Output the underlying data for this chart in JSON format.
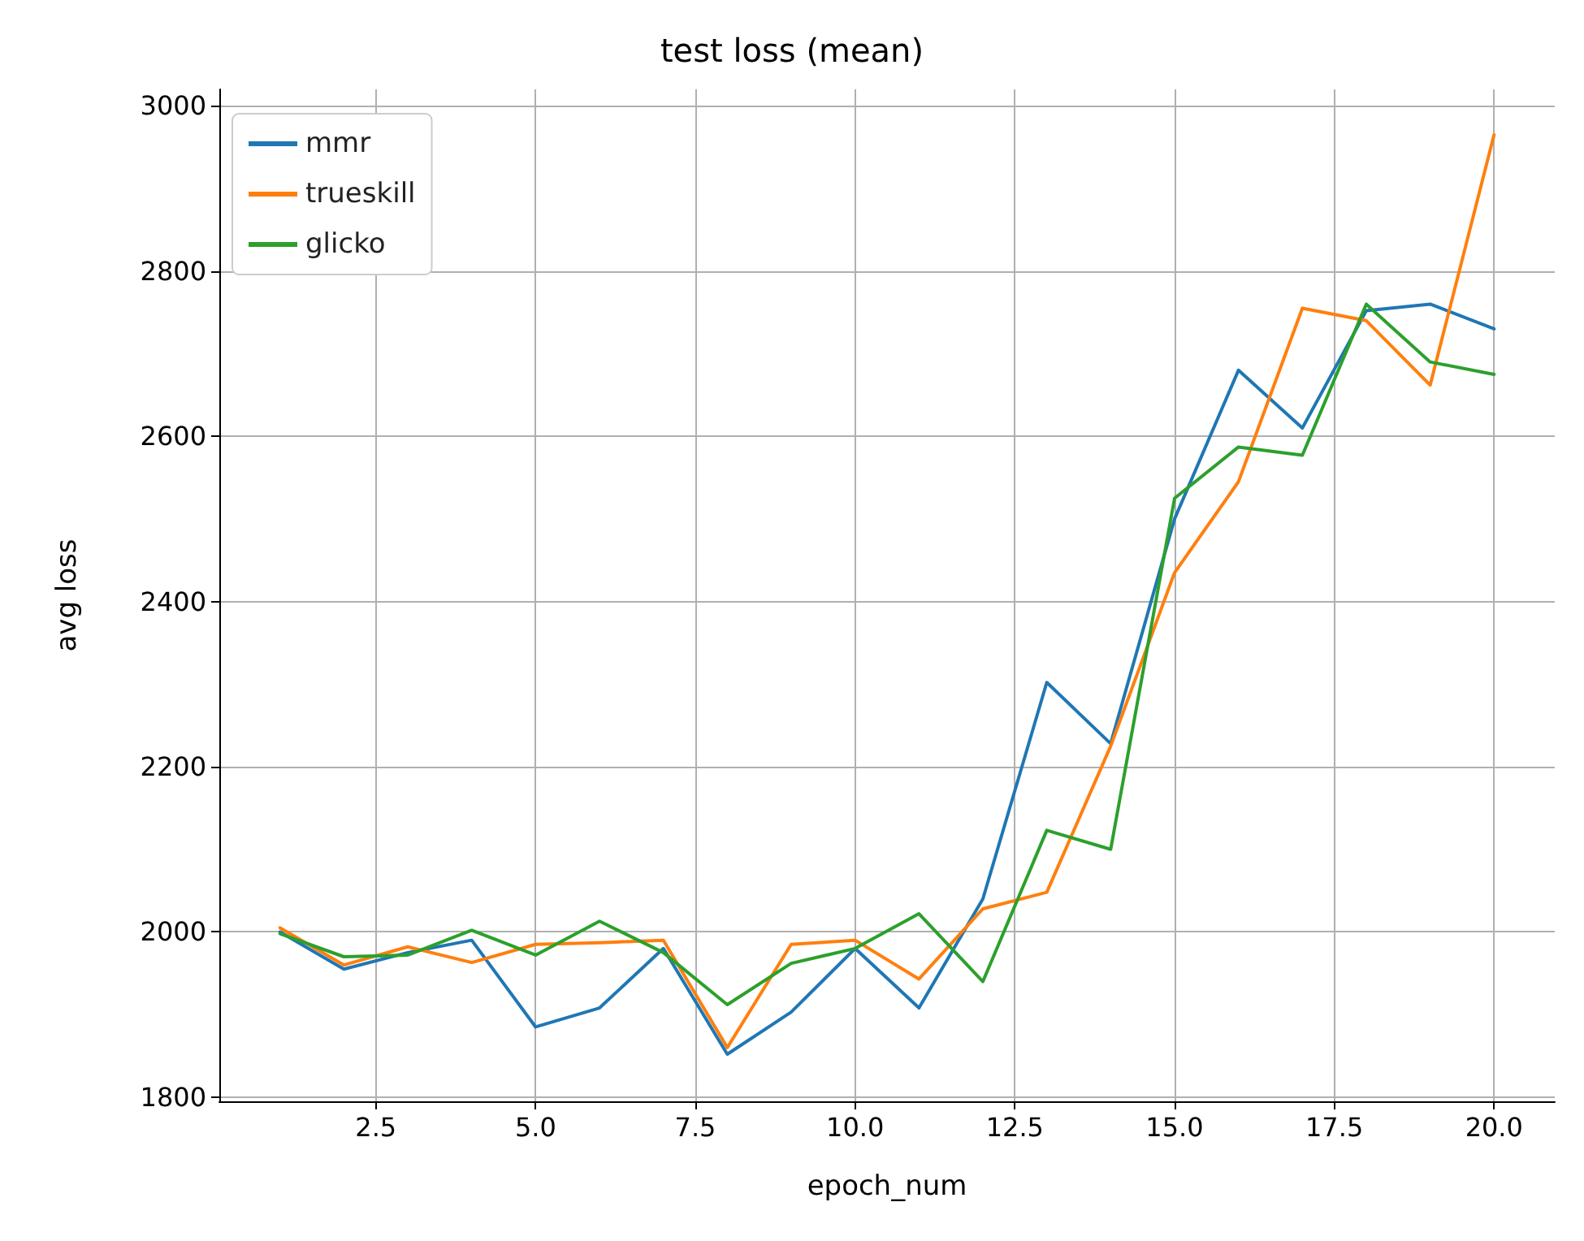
{
  "chart_data": {
    "type": "line",
    "title": "test loss (mean)",
    "xlabel": "epoch_num",
    "ylabel": "avg loss",
    "x": [
      1,
      2,
      3,
      4,
      5,
      6,
      7,
      8,
      9,
      10,
      11,
      12,
      13,
      14,
      15,
      16,
      17,
      18,
      19,
      20
    ],
    "series": [
      {
        "name": "mmr",
        "color": "#1f77b4",
        "values": [
          2000,
          1955,
          1975,
          1990,
          1885,
          1908,
          1980,
          1852,
          1903,
          1980,
          1908,
          2040,
          2302,
          2228,
          2500,
          2680,
          2610,
          2752,
          2760,
          2730
        ]
      },
      {
        "name": "trueskill",
        "color": "#ff7f0e",
        "values": [
          2005,
          1960,
          1982,
          1963,
          1985,
          1987,
          1990,
          1860,
          1985,
          1990,
          1943,
          2028,
          2048,
          2225,
          2435,
          2545,
          2755,
          2740,
          2662,
          2965
        ]
      },
      {
        "name": "glicko",
        "color": "#2ca02c",
        "values": [
          1998,
          1970,
          1972,
          2002,
          1972,
          2013,
          1975,
          1912,
          1962,
          1980,
          2022,
          1940,
          2123,
          2100,
          2525,
          2587,
          2577,
          2760,
          2690,
          2675
        ]
      }
    ],
    "xlim": [
      0.05,
      20.95
    ],
    "xticks": [
      2.5,
      {
        "value": 5,
        "label": "5.0"
      },
      7.5,
      {
        "value": 10,
        "label": "10.0"
      },
      12.5,
      {
        "value": 15,
        "label": "15.0"
      },
      17.5,
      {
        "value": 20,
        "label": "20.0"
      }
    ],
    "ylim": [
      1795,
      3020
    ],
    "yticks": [
      1800,
      2000,
      2200,
      2400,
      2600,
      2800,
      3000
    ],
    "grid": true,
    "legend": "top left",
    "marker": "none",
    "line_style": "solid"
  }
}
